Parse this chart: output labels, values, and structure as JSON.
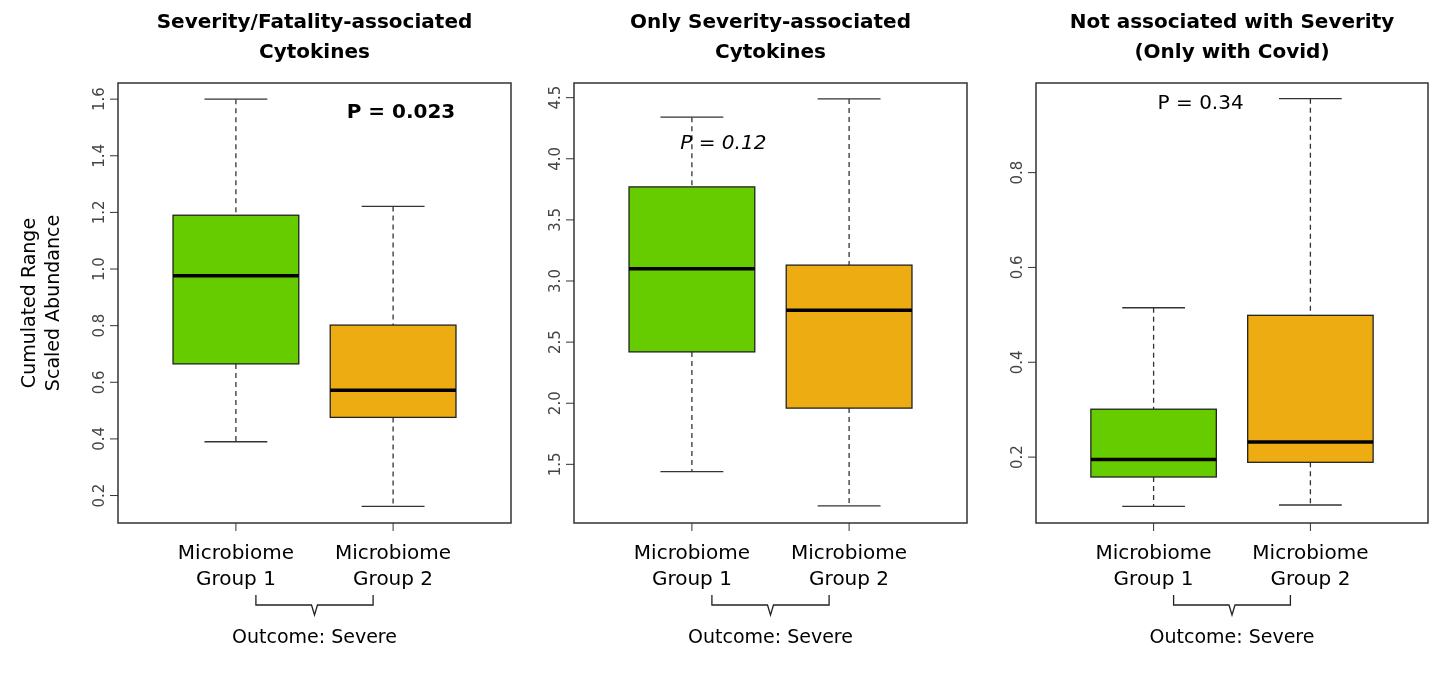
{
  "chart_data": [
    {
      "type": "box",
      "title": "Severity/Fatality-associated Cytokines",
      "ylabel": "Cumulated Range Scaled Abundance",
      "categories": [
        "Microbiome Group 1",
        "Microbiome Group 2"
      ],
      "colors": [
        "#66cc00",
        "#edac12"
      ],
      "boxes": [
        {
          "low": 0.39,
          "q1": 0.665,
          "median": 0.976,
          "q3": 1.19,
          "high": 1.6
        },
        {
          "low": 0.162,
          "q1": 0.476,
          "median": 0.572,
          "q3": 0.802,
          "high": 1.221
        }
      ],
      "ylim": [
        0.103,
        1.657
      ],
      "yticks": [
        0.2,
        0.4,
        0.6,
        0.8,
        {
          "value": 1,
          "label": "1.0"
        },
        1.2,
        1.4,
        1.6
      ],
      "annotations": [
        "P = 0.023",
        "Outcome: Severe"
      ]
    },
    {
      "type": "box",
      "title": "Only Severity-associated Cytokines",
      "categories": [
        "Microbiome Group 1",
        "Microbiome Group 2"
      ],
      "colors": [
        "#66cc00",
        "#edac12"
      ],
      "boxes": [
        {
          "low": 1.44,
          "q1": 2.42,
          "median": 3.1,
          "q3": 3.77,
          "high": 4.34
        },
        {
          "low": 1.16,
          "q1": 1.96,
          "median": 2.76,
          "q3": 3.13,
          "high": 4.49
        }
      ],
      "ylim": [
        1.02,
        4.62
      ],
      "yticks": [
        1.5,
        {
          "value": 2,
          "label": "2.0"
        },
        2.5,
        {
          "value": 3,
          "label": "3.0"
        },
        3.5,
        {
          "value": 4,
          "label": "4.0"
        },
        4.5
      ],
      "annotations": [
        "P = 0.12",
        "Outcome: Severe"
      ]
    },
    {
      "type": "box",
      "title": "Not associated with Severity (Only with Covid)",
      "categories": [
        "Microbiome Group 1",
        "Microbiome Group 2"
      ],
      "colors": [
        "#66cc00",
        "#edac12"
      ],
      "boxes": [
        {
          "low": 0.096,
          "q1": 0.158,
          "median": 0.195,
          "q3": 0.301,
          "high": 0.515
        },
        {
          "low": 0.099,
          "q1": 0.189,
          "median": 0.232,
          "q3": 0.499,
          "high": 0.956
        }
      ],
      "ylim": [
        0.061,
        0.989
      ],
      "yticks": [
        0.2,
        0.4,
        0.6,
        0.8
      ],
      "annotations": [
        "P = 0.34",
        "Outcome: Severe"
      ]
    }
  ]
}
